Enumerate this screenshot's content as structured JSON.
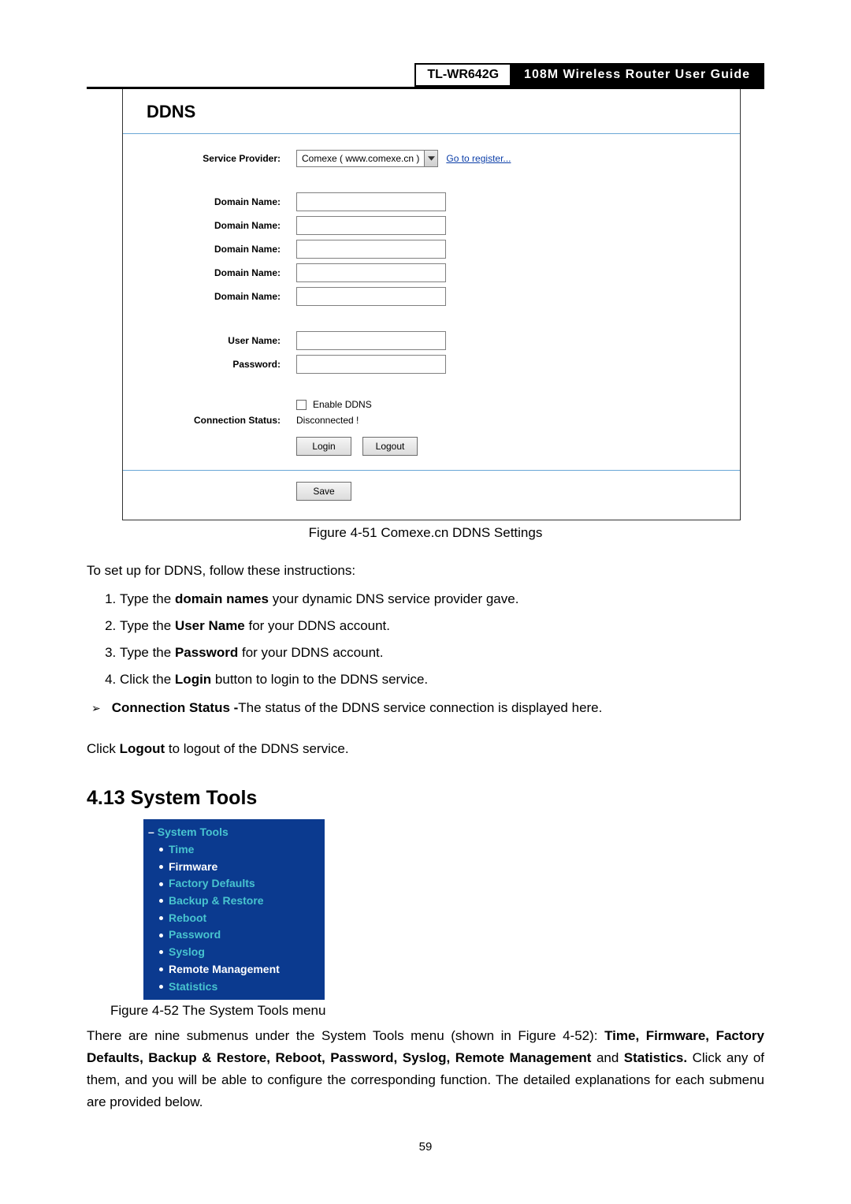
{
  "header": {
    "model": "TL-WR642G",
    "title": "108M  Wireless  Router  User  Guide"
  },
  "ddns": {
    "panel_title": "DDNS",
    "labels": {
      "service_provider": "Service Provider:",
      "domain_name": "Domain Name:",
      "user_name": "User Name:",
      "password": "Password:",
      "connection_status": "Connection Status:"
    },
    "service_provider_selected": "Comexe ( www.comexe.cn )",
    "register_link": "Go to register...",
    "enable_label": "Enable DDNS",
    "status_text": "Disconnected !",
    "buttons": {
      "login": "Login",
      "logout": "Logout",
      "save": "Save"
    }
  },
  "fig51_caption": "Figure 4-51    Comexe.cn DDNS Settings",
  "intro_text": "To set up for DDNS, follow these instructions:",
  "steps": {
    "1": {
      "pre": "Type the ",
      "bold": "domain names",
      "post": " your dynamic DNS service provider gave."
    },
    "2": {
      "pre": "Type the ",
      "bold": "User Name",
      "post": " for your DDNS account."
    },
    "3": {
      "pre": "Type the ",
      "bold": "Password",
      "post": " for your DDNS account."
    },
    "4": {
      "pre": "Click the ",
      "bold": "Login",
      "post": " button to login to the DDNS service."
    }
  },
  "conn_status_bold": "Connection Status -",
  "conn_status_rest": "The status of the DDNS service connection is displayed here.",
  "logout_pre": "Click ",
  "logout_bold": "Logout",
  "logout_post": " to logout of the DDNS service.",
  "section_heading": "4.13  System Tools",
  "tools_menu": {
    "head": "System Tools",
    "items": [
      {
        "label": "Time",
        "color": "c-teal"
      },
      {
        "label": "Firmware",
        "color": "c-white"
      },
      {
        "label": "Factory Defaults",
        "color": "c-teal"
      },
      {
        "label": "Backup & Restore",
        "color": "c-teal"
      },
      {
        "label": "Reboot",
        "color": "c-teal"
      },
      {
        "label": "Password",
        "color": "c-teal"
      },
      {
        "label": "Syslog",
        "color": "c-teal"
      },
      {
        "label": "Remote Management",
        "color": "c-white"
      },
      {
        "label": "Statistics",
        "color": "c-teal"
      }
    ]
  },
  "fig52_caption": "Figure 4-52    The System Tools menu",
  "para": {
    "p1_pre": "There are nine submenus under the System Tools menu (shown in Figure 4-52): ",
    "p1_bold": "Time, Firmware, Factory Defaults, Backup & Restore, Reboot, Password, Syslog, Remote Management",
    "p1_mid": " and ",
    "p1_bold2": "Statistics.",
    "p1_post": " Click any of them, and you will be able to configure the corresponding function. The detailed explanations for each submenu are provided below."
  },
  "page_number": "59"
}
